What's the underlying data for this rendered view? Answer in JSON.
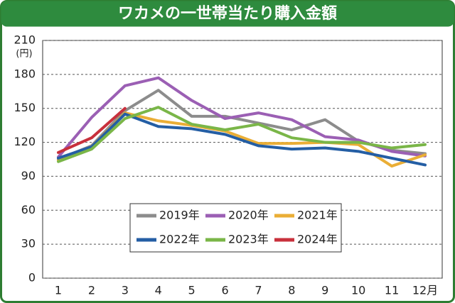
{
  "chart_data": {
    "type": "line",
    "title": "ワカメの一世帯当たり購入金額",
    "y_unit": "(円)",
    "categories": [
      "1",
      "2",
      "3",
      "4",
      "5",
      "6",
      "7",
      "8",
      "9",
      "10",
      "11",
      "12月"
    ],
    "series": [
      {
        "name": "2019年",
        "color": "#8c8c8c",
        "values": [
          105,
          117,
          148,
          166,
          143,
          143,
          137,
          131,
          140,
          121,
          113,
          110
        ]
      },
      {
        "name": "2020年",
        "color": "#9b5fb4",
        "values": [
          107,
          142,
          170,
          177,
          157,
          141,
          146,
          140,
          125,
          122,
          112,
          108
        ]
      },
      {
        "name": "2021年",
        "color": "#eaae36",
        "values": [
          104,
          116,
          146,
          139,
          135,
          130,
          119,
          119,
          120,
          118,
          99,
          109
        ]
      },
      {
        "name": "2022年",
        "color": "#245ea4",
        "values": [
          106,
          116,
          145,
          134,
          132,
          127,
          117,
          114,
          115,
          112,
          106,
          100
        ]
      },
      {
        "name": "2023年",
        "color": "#7ab648",
        "values": [
          103,
          114,
          141,
          151,
          136,
          131,
          136,
          124,
          120,
          120,
          115,
          118
        ]
      },
      {
        "name": "2024年",
        "color": "#c8303c",
        "values": [
          111,
          124,
          150,
          null,
          null,
          null,
          null,
          null,
          null,
          null,
          null,
          null
        ]
      }
    ],
    "ylim": [
      0,
      210
    ],
    "yticks": [
      0,
      30,
      60,
      90,
      120,
      150,
      180,
      210
    ],
    "grid": true
  }
}
